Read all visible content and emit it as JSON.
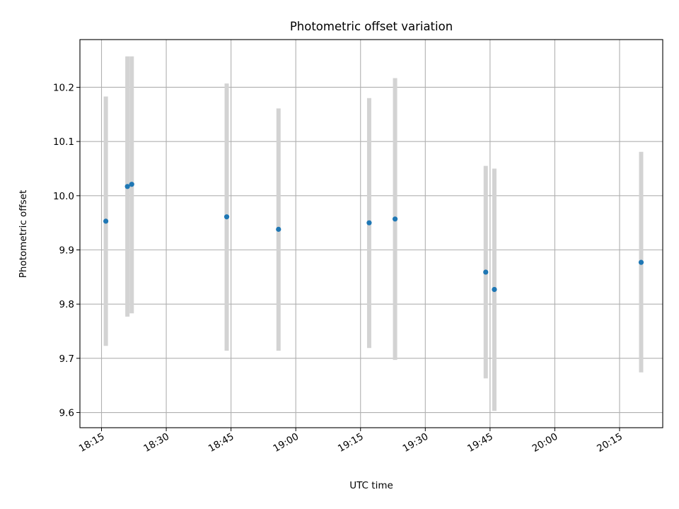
{
  "chart_data": {
    "type": "scatter",
    "title": "Photometric offset variation",
    "xlabel": "UTC time",
    "ylabel": "Photometric offset",
    "x_ticks": [
      "18:15",
      "18:30",
      "18:45",
      "19:00",
      "19:15",
      "19:30",
      "19:45",
      "20:00",
      "20:15"
    ],
    "y_ticks": [
      "9.6",
      "9.7",
      "9.8",
      "9.9",
      "10.0",
      "10.1",
      "10.2"
    ],
    "xlim": [
      "18:10",
      "20:25"
    ],
    "ylim": [
      9.572,
      10.288
    ],
    "grid": true,
    "point_color": "#1f77b4",
    "errorbar_color": "#d3d3d3",
    "points": [
      {
        "x": "18:16",
        "y": 9.953,
        "low": 9.723,
        "high": 10.183
      },
      {
        "x": "18:21",
        "y": 10.017,
        "low": 9.777,
        "high": 10.257
      },
      {
        "x": "18:22",
        "y": 10.021,
        "low": 9.783,
        "high": 10.257
      },
      {
        "x": "18:44",
        "y": 9.961,
        "low": 9.714,
        "high": 10.207
      },
      {
        "x": "18:56",
        "y": 9.938,
        "low": 9.714,
        "high": 10.161
      },
      {
        "x": "19:17",
        "y": 9.95,
        "low": 9.719,
        "high": 10.18
      },
      {
        "x": "19:23",
        "y": 9.957,
        "low": 9.697,
        "high": 10.217
      },
      {
        "x": "19:44",
        "y": 9.859,
        "low": 9.663,
        "high": 10.055
      },
      {
        "x": "19:46",
        "y": 9.827,
        "low": 9.603,
        "high": 10.05
      },
      {
        "x": "20:20",
        "y": 9.877,
        "low": 9.674,
        "high": 10.081
      }
    ]
  }
}
